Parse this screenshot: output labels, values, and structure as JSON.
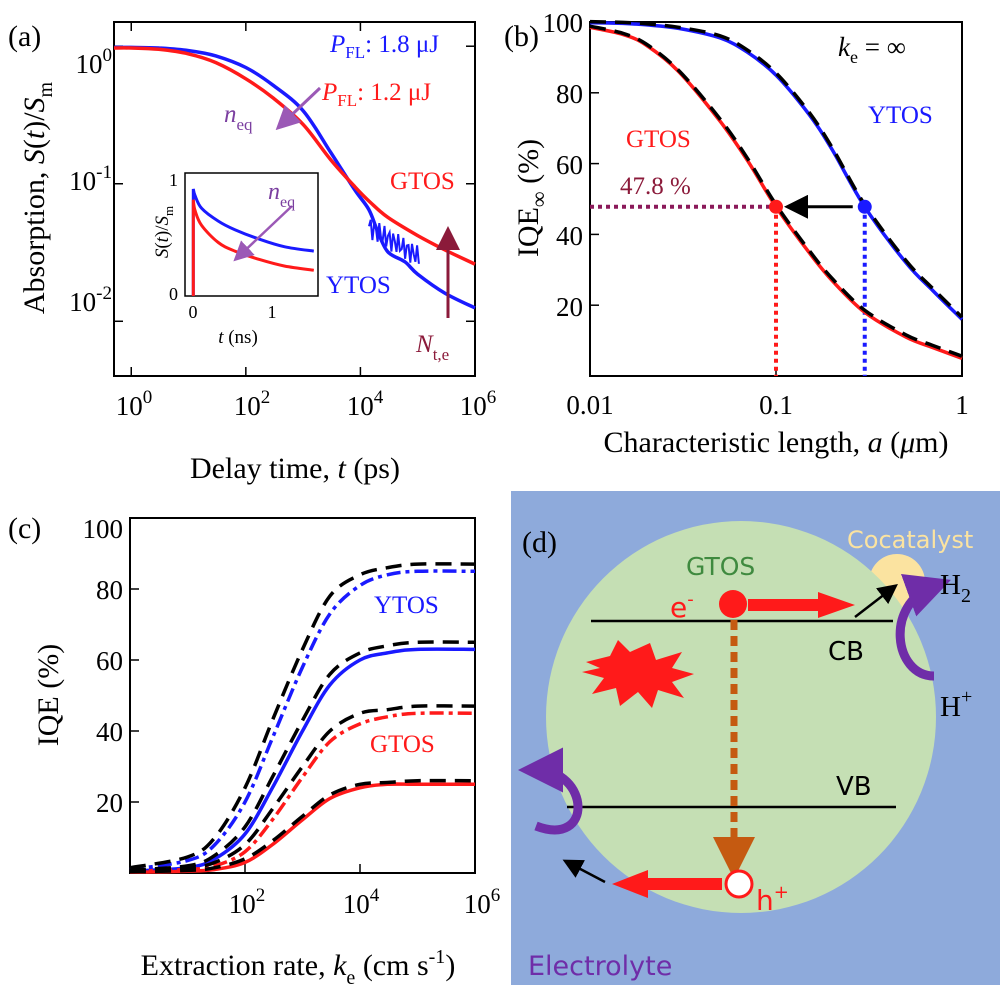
{
  "chart_data": [
    {
      "panel": "(a)",
      "type": "line",
      "xlabel": "Delay time, t (ps)",
      "ylabel": "Absorption, S(t)/Sm",
      "xscale": "log",
      "yscale": "log",
      "xlim": [
        0.5,
        1000000
      ],
      "ylim": [
        0.004,
        1.5
      ],
      "xticks": [
        "10^0",
        "10^2",
        "10^4",
        "10^6"
      ],
      "yticks": [
        "10^0",
        "10^-1",
        "10^-2"
      ],
      "legend": [
        {
          "name": "P_FL: 1.8 μJ",
          "sym": "P",
          "sub": "FL",
          "rest": ": 1.8 μJ",
          "color": "#1a1aff"
        },
        {
          "name": "P_FL: 1.2 μJ",
          "sym": "P",
          "sub": "FL",
          "rest": ": 1.2 μJ",
          "color": "#ff1a1a"
        }
      ],
      "annotations": {
        "neq_sym": "n",
        "neq_sub": "eq",
        "nte_sym": "N",
        "nte_sub": "t,e",
        "ytos": "YTOS",
        "gtos": "GTOS"
      },
      "series": [
        {
          "name": "YTOS",
          "color": "#1a1aff",
          "x": [
            0.5,
            1,
            3,
            10,
            30,
            100,
            300,
            1000,
            3000,
            8000,
            14000,
            20000,
            30000,
            60000,
            100000,
            300000,
            1000000
          ],
          "y": [
            0.98,
            0.98,
            0.97,
            0.93,
            0.85,
            0.7,
            0.52,
            0.34,
            0.17,
            0.09,
            0.065,
            0.045,
            0.032,
            0.027,
            0.022,
            0.016,
            0.0125
          ]
        },
        {
          "name": "GTOS",
          "color": "#ff1a1a",
          "x": [
            0.5,
            1,
            3,
            10,
            30,
            100,
            300,
            1000,
            3000,
            8000,
            15000,
            30000,
            100000,
            300000,
            1000000
          ],
          "y": [
            0.97,
            0.97,
            0.95,
            0.88,
            0.76,
            0.58,
            0.42,
            0.27,
            0.15,
            0.095,
            0.073,
            0.057,
            0.042,
            0.033,
            0.026
          ]
        }
      ],
      "inset": {
        "xlabel": "t (ns)",
        "ylabel": "S(t)/Sm",
        "xlim": [
          -0.1,
          1.5
        ],
        "ylim": [
          0,
          1.15
        ],
        "xticks": [
          "0",
          "1"
        ],
        "yticks": [
          "0",
          "1"
        ],
        "series": [
          {
            "name": "YTOS",
            "color": "#1a1aff",
            "x": [
              0,
              0.02,
              0.1,
              0.3,
              0.5,
              0.8,
              1.1,
              1.45
            ],
            "y": [
              1.0,
              0.94,
              0.82,
              0.7,
              0.62,
              0.53,
              0.46,
              0.42
            ]
          },
          {
            "name": "GTOS",
            "color": "#ff1a1a",
            "x": [
              0,
              0.02,
              0.1,
              0.3,
              0.5,
              0.8,
              1.1,
              1.45
            ],
            "y": [
              0.9,
              0.8,
              0.66,
              0.5,
              0.42,
              0.34,
              0.28,
              0.24
            ]
          }
        ]
      }
    },
    {
      "panel": "(b)",
      "type": "line",
      "xlabel": "Characteristic length, a (μm)",
      "ylabel": "IQE∞ (%)",
      "xscale": "log",
      "xlim": [
        0.01,
        1
      ],
      "ylim": [
        0,
        100
      ],
      "xticks": [
        "0.01",
        "0.1",
        "1"
      ],
      "yticks": [
        "20",
        "40",
        "60",
        "80",
        "100"
      ],
      "annotations": {
        "ke_sym": "k",
        "ke_sub": "e",
        "ke_val": " = ∞",
        "ytos": "YTOS",
        "gtos": "GTOS",
        "value_label": "47.8 %"
      },
      "marker_points": [
        {
          "x": 0.1,
          "y": 47.8,
          "color": "#ff1a1a"
        },
        {
          "x": 0.3,
          "y": 47.8,
          "color": "#1a1aff"
        }
      ],
      "series": [
        {
          "name": "YTOS",
          "color": "#1a1aff",
          "x": [
            0.01,
            0.015,
            0.02,
            0.03,
            0.05,
            0.07,
            0.1,
            0.15,
            0.2,
            0.3,
            0.5,
            0.7,
            1
          ],
          "y": [
            99.8,
            99.6,
            99.2,
            98.2,
            95.5,
            91.5,
            85,
            74,
            64,
            47.8,
            32,
            24,
            16
          ]
        },
        {
          "name": "GTOS",
          "color": "#ff1a1a",
          "x": [
            0.01,
            0.015,
            0.02,
            0.03,
            0.05,
            0.07,
            0.1,
            0.15,
            0.2,
            0.3,
            0.5,
            0.7,
            1
          ],
          "y": [
            98.5,
            96.5,
            93.5,
            86,
            72,
            61,
            47.8,
            35,
            27,
            18,
            11,
            8,
            5
          ]
        }
      ]
    },
    {
      "panel": "(c)",
      "type": "line",
      "xlabel": "Extraction rate, ke (cm s-1)",
      "xlabel_parts": {
        "pre": "Extraction rate, ",
        "sym": "k",
        "sub": "e",
        "post": " (cm s",
        "sup": "-1",
        "end": ")"
      },
      "ylabel": "IQE (%)",
      "xscale": "log",
      "xlim": [
        1,
        1000000
      ],
      "ylim": [
        0,
        100
      ],
      "xticks": [
        "10^2",
        "10^4",
        "10^6"
      ],
      "yticks": [
        "20",
        "40",
        "60",
        "80",
        "100"
      ],
      "annotations": {
        "ytos": "YTOS",
        "gtos": "GTOS"
      },
      "series": [
        {
          "name": "YTOS (dash-dot)",
          "color": "#1a1aff",
          "style": "dashdot",
          "x": [
            1,
            10,
            30,
            100,
            300,
            1000,
            3000,
            10000,
            30000,
            100000,
            1000000
          ],
          "y": [
            1,
            3.5,
            8,
            20,
            38,
            58,
            73,
            81,
            84,
            85,
            85
          ]
        },
        {
          "name": "YTOS (solid)",
          "color": "#1a1aff",
          "style": "solid",
          "x": [
            1,
            10,
            30,
            100,
            300,
            1000,
            3000,
            10000,
            30000,
            100000,
            1000000
          ],
          "y": [
            0.5,
            1.5,
            4,
            11,
            24,
            40,
            53,
            60,
            62,
            63,
            63
          ]
        },
        {
          "name": "GTOS (dash-dot)",
          "color": "#ff1a1a",
          "style": "dashdot",
          "x": [
            1,
            10,
            30,
            100,
            300,
            1000,
            3000,
            10000,
            30000,
            100000,
            1000000
          ],
          "y": [
            0.5,
            1,
            2,
            6,
            15,
            27,
            37,
            42,
            44,
            45,
            45
          ]
        },
        {
          "name": "GTOS (solid)",
          "color": "#ff1a1a",
          "style": "solid",
          "x": [
            1,
            10,
            30,
            100,
            300,
            1000,
            3000,
            10000,
            30000,
            100000,
            1000000
          ],
          "y": [
            0.2,
            0.5,
            1,
            3,
            8,
            15,
            21,
            24,
            25,
            25,
            25
          ]
        },
        {
          "name": "fit",
          "color": "#000000",
          "style": "dashed",
          "x": [
            1,
            10,
            30,
            100,
            300,
            1000,
            3000,
            10000,
            30000,
            100000,
            1000000
          ],
          "y": [
            1.5,
            4.5,
            10,
            24,
            43,
            63,
            78,
            84,
            86,
            87,
            87
          ]
        },
        {
          "name": "fit",
          "color": "#000000",
          "style": "dashed",
          "x": [
            1,
            10,
            30,
            100,
            300,
            1000,
            3000,
            10000,
            30000,
            100000,
            1000000
          ],
          "y": [
            0.8,
            2,
            5,
            13,
            27,
            43,
            56,
            62,
            64,
            65,
            65
          ]
        },
        {
          "name": "fit",
          "color": "#000000",
          "style": "dashed",
          "x": [
            1,
            10,
            30,
            100,
            300,
            1000,
            3000,
            10000,
            30000,
            100000,
            1000000
          ],
          "y": [
            0.6,
            1.5,
            3,
            8,
            18,
            30,
            40,
            45,
            46,
            47,
            47
          ]
        },
        {
          "name": "fit",
          "color": "#000000",
          "style": "dashed",
          "x": [
            1,
            10,
            30,
            100,
            300,
            1000,
            3000,
            10000,
            30000,
            100000,
            1000000
          ],
          "y": [
            0.3,
            0.7,
            1.5,
            4,
            9,
            16,
            22,
            25,
            25.5,
            26,
            26
          ]
        }
      ]
    },
    {
      "panel": "(d)",
      "type": "diagram",
      "labels": {
        "gtos": "GTOS",
        "cocatalyst": "Cocatalyst",
        "electron": "e",
        "electron_sup": "-",
        "hole": "h",
        "hole_sup": "+",
        "cb": "CB",
        "vb": "VB",
        "h2": "H",
        "h2_sub": "2",
        "hplus": "H",
        "hplus_sup": "+",
        "electrolyte": "Electrolyte"
      },
      "colors": {
        "background": "#8eaadb",
        "particle": "#c5dfb4",
        "cocatalyst": "#fbe3a0",
        "arrow": "#ff1a1a",
        "recomb": "#c55a11",
        "product_arrow": "#6f2da8"
      }
    }
  ]
}
